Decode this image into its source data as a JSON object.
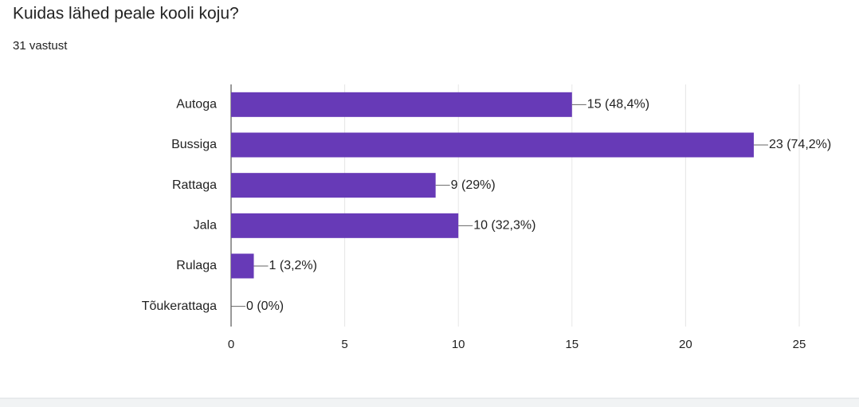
{
  "chart_data": {
    "type": "hbar",
    "title": "Kuidas lähed peale kooli koju?",
    "subtitle": "31 vastust",
    "categories": [
      "Autoga",
      "Bussiga",
      "Rattaga",
      "Jala",
      "Rulaga",
      "Tõukerattaga"
    ],
    "values": [
      15,
      23,
      9,
      10,
      1,
      0
    ],
    "value_labels": [
      "15 (48,4%)",
      "23 (74,2%)",
      "9 (29%)",
      "10 (32,3%)",
      "1 (3,2%)",
      "0 (0%)"
    ],
    "color": "#673ab7",
    "xlim": [
      0,
      25
    ],
    "xticks": [
      0,
      5,
      10,
      15,
      20,
      25
    ],
    "grid": true
  }
}
